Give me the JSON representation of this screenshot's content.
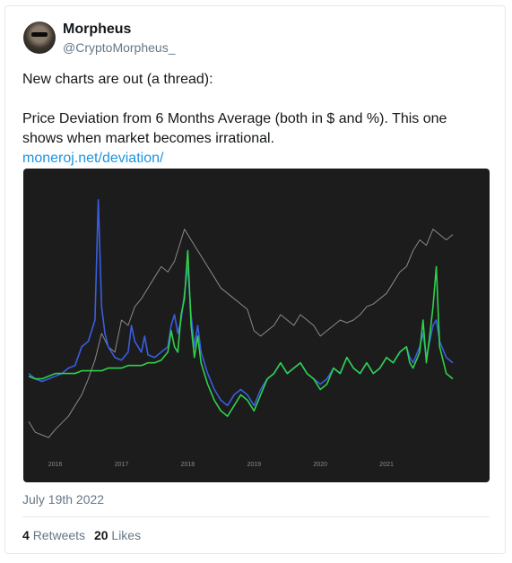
{
  "tweet": {
    "author_name": "Morpheus",
    "author_handle": "@CryptoMorpheus_",
    "line1": "New charts are out (a thread):",
    "line2": "Price Deviation from 6 Months Average (both in $ and %). This one",
    "line3": "shows when market becomes irrational.",
    "link": "moneroj.net/deviation/",
    "date": "July 19th 2022",
    "retweets_count": "4",
    "retweets_label": "Retweets",
    "likes_count": "20",
    "likes_label": "Likes"
  },
  "icons": {
    "avatar": "user-avatar"
  },
  "colors": {
    "link": "#1b95e0",
    "chart_bg": "#1c1c1c",
    "price_line": "#8a8a8a",
    "usd_line": "#3a5de0",
    "pct_line": "#2ed14a"
  },
  "chart_data": {
    "type": "line",
    "title": "",
    "xlabel": "",
    "ylabel": "",
    "x_ticks": [
      "2016",
      "2017",
      "2018",
      "2019",
      "2020",
      "2021"
    ],
    "x_range": [
      2015.6,
      2022.5
    ],
    "y_range": [
      0,
      100
    ],
    "grid": false,
    "series": [
      {
        "x": [
          2015.6,
          2015.7,
          2015.9,
          2016.0,
          2016.2,
          2016.4,
          2016.5,
          2016.6,
          2016.7,
          2016.8,
          2016.9,
          2017.0,
          2017.1,
          2017.2,
          2017.3,
          2017.4,
          2017.5,
          2017.6,
          2017.7,
          2017.8,
          2017.9,
          2017.95,
          2018.0,
          2018.1,
          2018.2,
          2018.3,
          2018.4,
          2018.5,
          2018.6,
          2018.7,
          2018.8,
          2018.9,
          2019.0,
          2019.1,
          2019.2,
          2019.3,
          2019.4,
          2019.5,
          2019.6,
          2019.7,
          2019.8,
          2019.9,
          2020.0,
          2020.1,
          2020.2,
          2020.3,
          2020.4,
          2020.5,
          2020.6,
          2020.7,
          2020.8,
          2020.9,
          2021.0,
          2021.1,
          2021.2,
          2021.3,
          2021.4,
          2021.5,
          2021.6,
          2021.7,
          2021.8,
          2021.9,
          2022.0
        ],
        "values": [
          12,
          8,
          6,
          9,
          14,
          22,
          28,
          35,
          45,
          40,
          38,
          50,
          48,
          55,
          58,
          62,
          66,
          70,
          68,
          72,
          80,
          84,
          82,
          78,
          74,
          70,
          66,
          62,
          60,
          58,
          56,
          54,
          46,
          44,
          46,
          48,
          52,
          50,
          48,
          52,
          50,
          48,
          44,
          46,
          48,
          50,
          49,
          50,
          52,
          55,
          56,
          58,
          60,
          64,
          68,
          70,
          76,
          80,
          78,
          84,
          82,
          80,
          82
        ]
      },
      {
        "x": [
          2015.6,
          2015.7,
          2015.8,
          2015.9,
          2016.0,
          2016.1,
          2016.2,
          2016.3,
          2016.4,
          2016.5,
          2016.6,
          2016.65,
          2016.7,
          2016.75,
          2016.8,
          2016.85,
          2016.9,
          2017.0,
          2017.1,
          2017.15,
          2017.2,
          2017.25,
          2017.3,
          2017.35,
          2017.4,
          2017.5,
          2017.6,
          2017.7,
          2017.75,
          2017.8,
          2017.85,
          2017.9,
          2017.95,
          2018.0,
          2018.05,
          2018.1,
          2018.15,
          2018.2,
          2018.3,
          2018.4,
          2018.5,
          2018.6,
          2018.7,
          2018.8,
          2018.9,
          2019.0,
          2019.1,
          2019.2,
          2019.3,
          2019.4,
          2019.5,
          2019.6,
          2019.7,
          2019.8,
          2019.9,
          2020.0,
          2020.1,
          2020.2,
          2020.3,
          2020.4,
          2020.5,
          2020.6,
          2020.7,
          2020.8,
          2020.9,
          2021.0,
          2021.1,
          2021.2,
          2021.3,
          2021.35,
          2021.4,
          2021.5,
          2021.55,
          2021.6,
          2021.65,
          2021.7,
          2021.75,
          2021.8,
          2021.9,
          2022.0
        ],
        "values": [
          30,
          28,
          27,
          28,
          29,
          30,
          32,
          33,
          40,
          42,
          50,
          95,
          55,
          45,
          40,
          38,
          36,
          35,
          38,
          48,
          42,
          40,
          38,
          44,
          37,
          36,
          38,
          40,
          48,
          52,
          45,
          50,
          60,
          70,
          52,
          40,
          48,
          38,
          30,
          24,
          20,
          18,
          22,
          24,
          22,
          18,
          24,
          28,
          30,
          34,
          30,
          32,
          34,
          30,
          28,
          26,
          28,
          32,
          30,
          36,
          32,
          30,
          34,
          30,
          32,
          36,
          34,
          38,
          40,
          36,
          34,
          40,
          45,
          36,
          42,
          48,
          50,
          42,
          36,
          34
        ]
      },
      {
        "x": [
          2015.6,
          2015.7,
          2015.8,
          2015.9,
          2016.0,
          2016.1,
          2016.2,
          2016.3,
          2016.4,
          2016.5,
          2016.6,
          2016.7,
          2016.8,
          2016.9,
          2017.0,
          2017.1,
          2017.2,
          2017.3,
          2017.4,
          2017.5,
          2017.6,
          2017.7,
          2017.75,
          2017.8,
          2017.85,
          2017.9,
          2017.95,
          2018.0,
          2018.05,
          2018.1,
          2018.15,
          2018.2,
          2018.3,
          2018.4,
          2018.5,
          2018.6,
          2018.7,
          2018.8,
          2018.9,
          2019.0,
          2019.1,
          2019.2,
          2019.3,
          2019.4,
          2019.5,
          2019.6,
          2019.7,
          2019.8,
          2019.9,
          2020.0,
          2020.1,
          2020.2,
          2020.3,
          2020.4,
          2020.5,
          2020.6,
          2020.7,
          2020.8,
          2020.9,
          2021.0,
          2021.1,
          2021.2,
          2021.3,
          2021.35,
          2021.4,
          2021.5,
          2021.55,
          2021.6,
          2021.65,
          2021.7,
          2021.75,
          2021.8,
          2021.9,
          2022.0
        ],
        "values": [
          29,
          28,
          28,
          29,
          30,
          30,
          30,
          30,
          31,
          31,
          31,
          31,
          32,
          32,
          32,
          33,
          33,
          33,
          34,
          34,
          35,
          38,
          46,
          40,
          38,
          52,
          58,
          76,
          48,
          36,
          44,
          34,
          26,
          20,
          16,
          14,
          18,
          22,
          20,
          16,
          22,
          28,
          30,
          34,
          30,
          32,
          34,
          30,
          28,
          24,
          26,
          32,
          30,
          36,
          32,
          30,
          34,
          30,
          32,
          36,
          34,
          38,
          40,
          34,
          32,
          38,
          50,
          34,
          44,
          55,
          70,
          40,
          30,
          28
        ]
      }
    ]
  }
}
